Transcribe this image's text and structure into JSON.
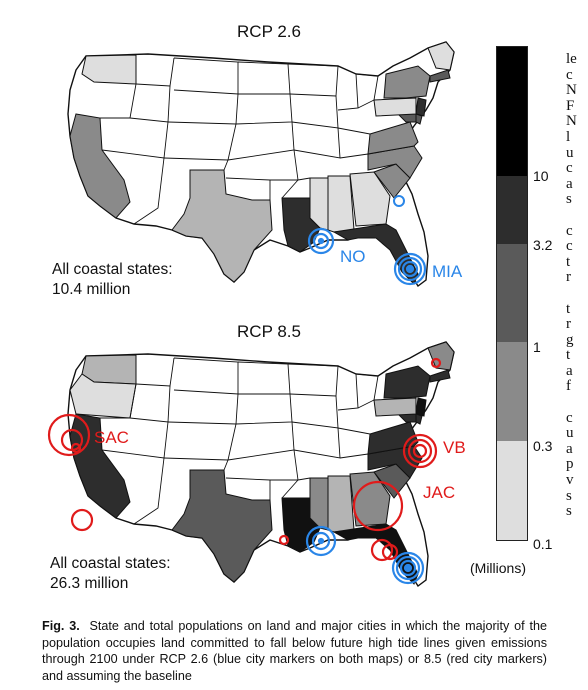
{
  "maps": [
    {
      "title": "RCP 2.6",
      "summary_label": "All coastal states:",
      "summary_value": "10.4 million",
      "cities": [
        {
          "code": "NO",
          "color": "blue"
        },
        {
          "code": "MIA",
          "color": "blue"
        }
      ]
    },
    {
      "title": "RCP 8.5",
      "summary_label": "All coastal states:",
      "summary_value": "26.3 million",
      "cities": [
        {
          "code": "SAC",
          "color": "red"
        },
        {
          "code": "VB",
          "color": "red"
        },
        {
          "code": "JAC",
          "color": "red"
        }
      ]
    }
  ],
  "colorbar": {
    "ticks": [
      "10",
      "3.2",
      "1",
      "0.3",
      "0.1"
    ],
    "unit": "(Millions)",
    "colors": [
      "#000000",
      "#2d2d2d",
      "#5a5a5a",
      "#8a8a8a",
      "#b4b4b4",
      "#dedede"
    ]
  },
  "city_colors": {
    "blue": "#2a86e8",
    "red": "#e01b1b"
  },
  "right_column_fragments": [
    "le",
    "c",
    "N",
    "F",
    "N",
    "l",
    "u",
    "c",
    "a",
    "s",
    "",
    "c",
    "c",
    "t",
    "r",
    "",
    "t",
    "r",
    "g",
    "t",
    "a",
    "f",
    "",
    "c",
    "u",
    "a",
    "p",
    "v",
    "s",
    "s"
  ],
  "caption": {
    "label": "Fig. 3.",
    "text": "State and total populations on land and major cities in which the majority of the population occupies land committed to fall below future high tide lines given emissions through 2100 under RCP 2.6 (blue city markers on both maps) or 8.5 (red city markers) and assuming the baseline"
  }
}
